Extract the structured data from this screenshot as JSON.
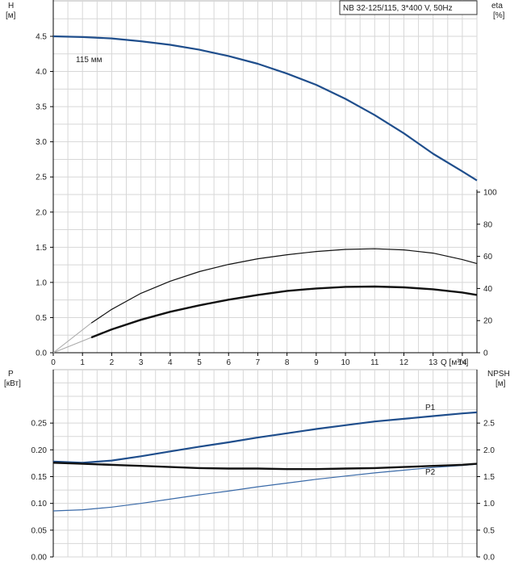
{
  "colors": {
    "blue": "#1f4e8c",
    "black": "#111111",
    "grid": "#d7d7d7"
  },
  "top_chart": {
    "legend_box": "NB 32-125/115, 3*400 V, 50Hz",
    "ylabel_left": [
      "H",
      "[м]"
    ],
    "ylabel_right": [
      "eta",
      "[%]"
    ],
    "xlabel": "Q [м³/ч]",
    "curve_label": "115 мм"
  },
  "bottom_chart": {
    "ylabel_left": [
      "P",
      "[кВт]"
    ],
    "ylabel_right": [
      "NPSH",
      "[м]"
    ],
    "p1_label": "P1",
    "p2_label": "P2"
  },
  "chart_data": [
    {
      "type": "line",
      "xlabel": "Q [м³/ч]",
      "ylabel": "H [м]",
      "ylabel_right": "eta [%]",
      "xlim": [
        0,
        14.5
      ],
      "ylim": [
        0,
        4.5
      ],
      "ylim_right": [
        0,
        100
      ],
      "x_ticks": [
        0,
        1,
        2,
        3,
        4,
        5,
        6,
        7,
        8,
        9,
        10,
        11,
        12,
        13,
        14
      ],
      "y_ticks": [
        "0.0",
        "0.5",
        "1.0",
        "1.5",
        "2.0",
        "2.5",
        "3.0",
        "3.5",
        "4.0",
        "4.5"
      ],
      "y_right_ticks": [
        "0",
        "20",
        "40",
        "60",
        "80",
        "100"
      ],
      "series": [
        {
          "name": "115 мм",
          "axis": "left",
          "color": "#1f4e8c",
          "width": 2.2,
          "x": [
            0,
            1,
            2,
            3,
            4,
            5,
            6,
            7,
            8,
            9,
            10,
            11,
            12,
            13,
            14,
            14.5
          ],
          "y": [
            4.5,
            4.49,
            4.47,
            4.43,
            4.38,
            4.31,
            4.22,
            4.11,
            3.97,
            3.81,
            3.61,
            3.38,
            3.12,
            2.83,
            2.58,
            2.45
          ]
        },
        {
          "axis": "right",
          "color": "#111111",
          "width": 1.2,
          "x": [
            1.3,
            2,
            3,
            4,
            5,
            6,
            7,
            8,
            9,
            10,
            11,
            12,
            13,
            14,
            14.5
          ],
          "y": [
            18.5,
            27,
            37,
            44.5,
            50.5,
            55,
            58.5,
            61,
            63,
            64.3,
            64.7,
            64,
            62,
            58,
            55.5
          ]
        },
        {
          "axis": "right",
          "color": "#111111",
          "width": 2.4,
          "x": [
            1.3,
            2,
            3,
            4,
            5,
            6,
            7,
            8,
            9,
            10,
            11,
            12,
            13,
            14,
            14.5
          ],
          "y": [
            9.5,
            14.5,
            20.5,
            25.5,
            29.5,
            33,
            36,
            38.5,
            40,
            41,
            41.2,
            40.7,
            39.5,
            37.5,
            36
          ]
        },
        {
          "axis": "right",
          "color": "#aaaaaa",
          "width": 1,
          "x": [
            0,
            1.3
          ],
          "y": [
            0,
            18.5
          ]
        },
        {
          "axis": "right",
          "color": "#aaaaaa",
          "width": 1,
          "x": [
            0,
            1.3
          ],
          "y": [
            0,
            9.5
          ]
        }
      ]
    },
    {
      "type": "line",
      "ylabel": "P [кВт]",
      "ylabel_right": "NPSH [м]",
      "xlim": [
        0,
        14.5
      ],
      "ylim": [
        0,
        0.3
      ],
      "ylim_right": [
        0,
        3
      ],
      "y_ticks": [
        "0.00",
        "0.05",
        "0.10",
        "0.15",
        "0.20",
        "0.25"
      ],
      "y_right_ticks": [
        "0.0",
        "0.5",
        "1.0",
        "1.5",
        "2.0",
        "2.5"
      ],
      "series": [
        {
          "name": "P1",
          "axis": "left",
          "color": "#1f4e8c",
          "width": 2.2,
          "x": [
            0,
            1,
            2,
            3,
            4,
            5,
            6,
            7,
            8,
            9,
            10,
            11,
            12,
            13,
            14,
            14.5
          ],
          "y": [
            0.178,
            0.176,
            0.18,
            0.188,
            0.197,
            0.206,
            0.214,
            0.223,
            0.231,
            0.239,
            0.246,
            0.253,
            0.258,
            0.263,
            0.268,
            0.27
          ]
        },
        {
          "name": "P2",
          "axis": "left",
          "color": "#3a6aa8",
          "width": 1.2,
          "x": [
            0,
            1,
            2,
            3,
            4,
            5,
            6,
            7,
            8,
            9,
            10,
            11,
            12,
            13,
            14,
            14.5
          ],
          "y": [
            0.086,
            0.088,
            0.093,
            0.1,
            0.108,
            0.116,
            0.123,
            0.131,
            0.138,
            0.145,
            0.151,
            0.157,
            0.162,
            0.167,
            0.171,
            0.173
          ]
        },
        {
          "name": "NPSH",
          "axis": "right",
          "color": "#111111",
          "width": 2.4,
          "x": [
            0,
            1,
            2,
            3,
            4,
            5,
            6,
            7,
            8,
            9,
            10,
            11,
            12,
            13,
            14,
            14.5
          ],
          "y": [
            1.76,
            1.74,
            1.72,
            1.7,
            1.68,
            1.66,
            1.65,
            1.65,
            1.64,
            1.64,
            1.65,
            1.66,
            1.68,
            1.7,
            1.72,
            1.74
          ]
        }
      ]
    }
  ]
}
